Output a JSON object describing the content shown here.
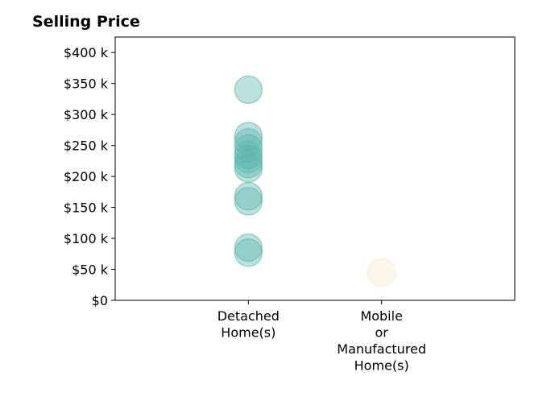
{
  "chart_data": {
    "type": "scatter",
    "title": "Selling Price",
    "xlabel": "",
    "ylabel": "",
    "categories": [
      "Detached\nHome(s)",
      "Mobile\nor\nManufactured\nHome(s)"
    ],
    "ylim": [
      0,
      425000
    ],
    "yticks": [
      0,
      50000,
      100000,
      150000,
      200000,
      250000,
      300000,
      350000,
      400000
    ],
    "ytick_labels": [
      "$0",
      "$50 k",
      "$100 k",
      "$150 k",
      "$200 k",
      "$250 k",
      "$300 k",
      "$350 k",
      "$400 k"
    ],
    "grid": false,
    "legend": "none",
    "series": [
      {
        "category": "Detached\nHome(s)",
        "color": "#5ab4ac",
        "values": [
          340000,
          265000,
          255000,
          245000,
          235000,
          228000,
          220000,
          213000,
          168000,
          160000,
          85000,
          77000
        ]
      },
      {
        "category": "Mobile\nor\nManufactured\nHome(s)",
        "color": "#f6e8c3",
        "values": [
          45000
        ]
      }
    ]
  }
}
